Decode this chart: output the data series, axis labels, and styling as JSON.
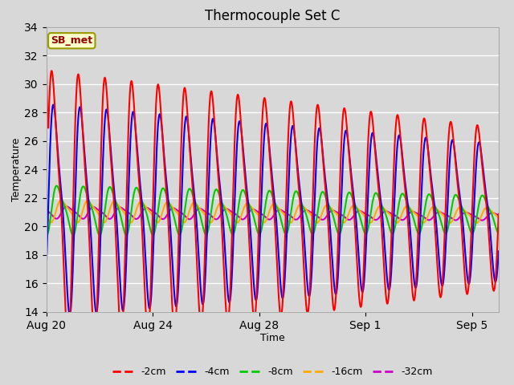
{
  "title": "Thermocouple Set C",
  "xlabel": "Time",
  "ylabel": "Temperature",
  "ylim": [
    14,
    34
  ],
  "yticks": [
    14,
    16,
    18,
    20,
    22,
    24,
    26,
    28,
    30,
    32,
    34
  ],
  "bg_color": "#d8d8d8",
  "plot_bg_color": "#d8d8d8",
  "annotation_text": "SB_met",
  "annotation_bg": "#ffffcc",
  "annotation_border": "#999900",
  "annotation_text_color": "#990000",
  "series_colors": [
    "#ff0000",
    "#0000ff",
    "#00cc00",
    "#ffaa00",
    "#cc00cc"
  ],
  "series_labels": [
    "-2cm",
    "-4cm",
    "-8cm",
    "-16cm",
    "-32cm"
  ],
  "mean_temp": 21.3,
  "start_day": 0,
  "end_day": 17,
  "n_points": 4000,
  "xtick_positions": [
    0,
    4,
    8,
    12,
    16
  ],
  "xtick_labels": [
    "Aug 20",
    "Aug 24",
    "Aug 28",
    "Sep 1",
    "Sep 5"
  ],
  "grid_color": "#ffffff",
  "grid_linewidth": 1.0,
  "figsize": [
    6.4,
    4.8
  ],
  "dpi": 100
}
